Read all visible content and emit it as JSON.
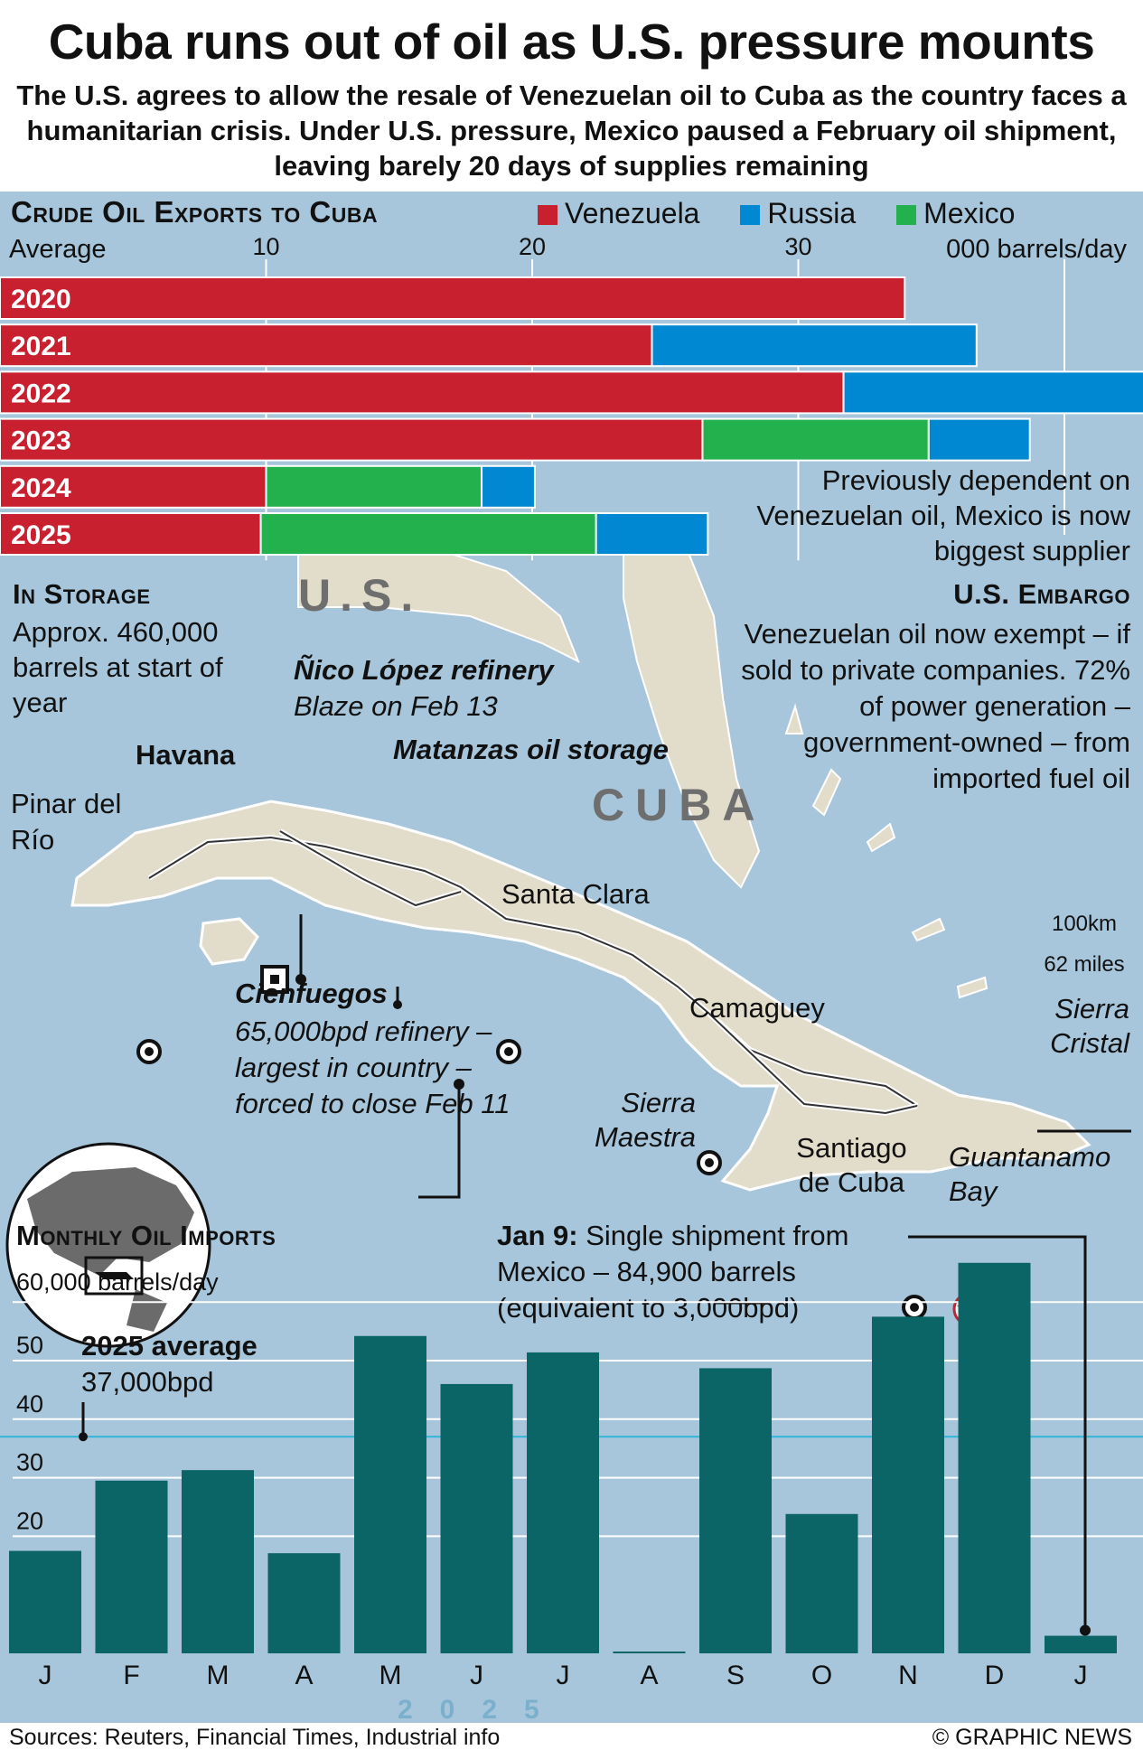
{
  "header": {
    "title": "Cuba runs out of oil as U.S. pressure mounts",
    "subtitle": "The U.S. agrees to allow the resale of Venezuelan oil to Cuba as the country faces a humanitarian crisis. Under U.S. pressure, Mexico paused a February oil shipment, leaving barely 20 days of supplies remaining"
  },
  "exports": {
    "title": "Crude Oil Exports to Cuba",
    "average_label": "Average",
    "unit_label": "000 barrels/day",
    "note": "Previously dependent on Venezuelan oil, Mexico is now biggest supplier"
  },
  "map": {
    "us_label": "U.S.",
    "cuba_label": "CUBA",
    "storage_title": "In Storage",
    "storage_text": "Approx. 460,000 barrels at start of year",
    "nico_title": "Ñico López refinery",
    "nico_text": "Blaze on Feb 13",
    "matanzas": "Matanzas oil storage",
    "havana": "Havana",
    "pinar": "Pinar del Río",
    "santa_clara": "Santa Clara",
    "camaguey": "Camaguey",
    "santiago": "Santiago de Cuba",
    "guantanamo": "Guantanamo Bay",
    "sierra_maestra": "Sierra Maestra",
    "sierra_cristal": "Sierra Cristal",
    "cienfuegos_title": "Cienfuegos",
    "cienfuegos_text": "65,000bpd refinery – largest in country – forced to close Feb 11",
    "embargo_title": "U.S. Embargo",
    "embargo_text": "Venezuelan oil now exempt – if sold to private companies. 72% of power generation – government-owned – from imported fuel oil",
    "scale_km": "100km",
    "scale_miles": "62 miles"
  },
  "imports": {
    "title": "Monthly Oil Imports",
    "average_title": "2025 average",
    "average_value": "37,000bpd",
    "jan9_bold": "Jan 9:",
    "jan9_text": "Single shipment from Mexico – 84,900 barrels (equivalent to 3,000bpd)",
    "year_label": "2025"
  },
  "footer": {
    "sources": "Sources: Reuters, Financial Times, Industrial info",
    "credit": "© GRAPHIC NEWS"
  },
  "colors": {
    "venezuela": "#c8202f",
    "russia": "#0089d2",
    "mexico": "#23b14d",
    "imports_bar": "#0b6466",
    "panel": "#a7c6db",
    "average_line": "#30b4d8"
  },
  "chart_data": [
    {
      "type": "bar",
      "orientation": "horizontal",
      "stacked": true,
      "title": "Crude Oil Exports to Cuba",
      "xlabel": "000 barrels/day",
      "ylabel": "Average",
      "categories": [
        "2020",
        "2021",
        "2022",
        "2023",
        "2024",
        "2025"
      ],
      "x_ticks": [
        "10",
        "20",
        "30"
      ],
      "xlim": [
        0,
        43
      ],
      "legend": "top-right",
      "series": [
        {
          "name": "Venezuela",
          "values": [
            34,
            24.5,
            31.7,
            26.4,
            10,
            9.8
          ]
        },
        {
          "name": "Mexico",
          "values": [
            0,
            0,
            0,
            8.5,
            8.1,
            12.6
          ]
        },
        {
          "name": "Russia",
          "values": [
            0,
            12.2,
            12.0,
            3.8,
            2.0,
            4.2
          ]
        }
      ]
    },
    {
      "type": "bar",
      "title": "Monthly Oil Imports",
      "ylabel": "60,000 barrels/day",
      "categories": [
        "J",
        "F",
        "M",
        "A",
        "M",
        "J",
        "J",
        "A",
        "S",
        "O",
        "N",
        "D",
        "J"
      ],
      "values": [
        17.5,
        29.5,
        31.3,
        17.1,
        54.2,
        46.0,
        51.4,
        0.3,
        48.7,
        23.8,
        57.5,
        66.7,
        3.0
      ],
      "y_ticks": [
        "20",
        "30",
        "40",
        "50"
      ],
      "ylim": [
        0,
        70
      ],
      "average": 37,
      "xlabel": "2025"
    }
  ]
}
